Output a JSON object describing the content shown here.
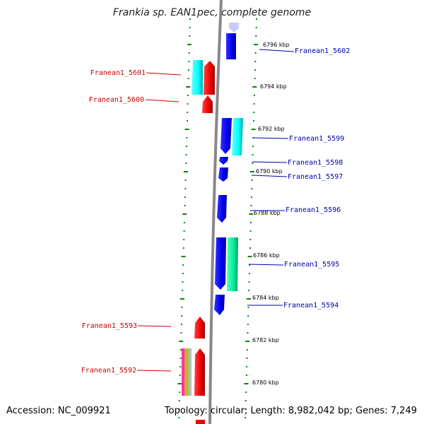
{
  "title": "Frankia sp. EAN1pec, complete genome",
  "footer": {
    "accession": "Accession: NC_009921",
    "topology": "Topology: circular; Length: 8,982,042 bp; Genes: 7,249"
  },
  "colors": {
    "forward_gene": "#ff0000",
    "reverse_gene": "#0000ff",
    "cds_cyan": "#00ffff",
    "cds_green": "#00ee99",
    "backbone": "#888888",
    "tick": "#008800",
    "label_left": "#cc0000",
    "label_right": "#0000aa"
  },
  "kbp_labels": [
    "6796 kbp",
    "6794 kbp",
    "6792 kbp",
    "6790 kbp",
    "6788 kbp",
    "6786 kbp",
    "6784 kbp",
    "6782 kbp",
    "6780 kbp"
  ],
  "genes_left": [
    "Franean1_5601",
    "Franean1_5600",
    "Franean1_5593",
    "Franean1_5592"
  ],
  "genes_right": [
    "Franean1_5602",
    "Franean1_5599",
    "Franean1_5598",
    "Franean1_5597",
    "Franean1_5596",
    "Franean1_5595",
    "Franean1_5594"
  ]
}
